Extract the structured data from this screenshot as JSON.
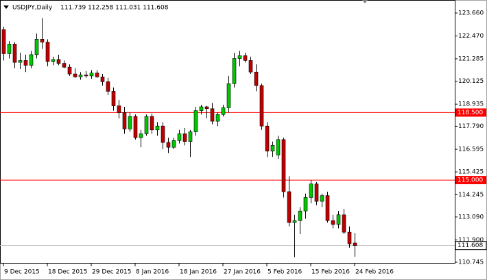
{
  "chart_data": {
    "type": "candlestick",
    "title": "USDJPY,Daily",
    "ohlc_text": "111.739 112.258 111.031 111.608",
    "categories": [
      "9 Dec 2015",
      null,
      null,
      null,
      null,
      null,
      null,
      null,
      "18 Dec 2015",
      null,
      null,
      null,
      null,
      null,
      null,
      null,
      "29 Dec 2015",
      null,
      null,
      null,
      null,
      null,
      null,
      null,
      "8 Jan 2016",
      null,
      null,
      null,
      null,
      null,
      null,
      null,
      "18 Jan 2016",
      null,
      null,
      null,
      null,
      null,
      null,
      null,
      "27 Jan 2016",
      null,
      null,
      null,
      null,
      null,
      null,
      null,
      "5 Feb 2016",
      null,
      null,
      null,
      null,
      null,
      null,
      null,
      "15 Feb 2016",
      null,
      null,
      null,
      null,
      null,
      null,
      null,
      "24 Feb 2016"
    ],
    "open": [
      122.8,
      121.55,
      122.05,
      121.1,
      121.2,
      120.95,
      121.5,
      122.3,
      122.15,
      121.15,
      121.25,
      121.05,
      120.85,
      120.5,
      120.35,
      120.45,
      120.4,
      120.55,
      120.35,
      120.1,
      119.6,
      118.85,
      118.5,
      117.65,
      118.3,
      117.2,
      117.4,
      118.3,
      117.6,
      117.8,
      116.95,
      116.7,
      117.05,
      117.4,
      117.0,
      117.5,
      118.6,
      118.8,
      118.7,
      118.05,
      118.4,
      118.75,
      120.0,
      121.3,
      121.45,
      121.2,
      120.6,
      119.9,
      117.8,
      116.5,
      116.3,
      117.1,
      114.4,
      112.8,
      112.9,
      113.4,
      114.1,
      114.8,
      113.9,
      114.2,
      112.9,
      112.7,
      113.2,
      112.3,
      111.739
    ],
    "high": [
      122.95,
      122.2,
      122.15,
      121.6,
      121.5,
      121.7,
      122.6,
      123.4,
      122.3,
      121.4,
      121.5,
      121.2,
      121.0,
      120.8,
      120.6,
      120.65,
      120.7,
      120.7,
      120.5,
      120.3,
      119.8,
      119.15,
      118.8,
      118.5,
      118.4,
      117.6,
      118.4,
      118.45,
      118.0,
      118.0,
      117.2,
      117.2,
      117.6,
      117.7,
      117.6,
      118.8,
      118.9,
      118.85,
      119.0,
      118.5,
      118.9,
      120.4,
      121.6,
      121.7,
      121.6,
      121.4,
      121.0,
      120.0,
      118.0,
      117.0,
      117.3,
      117.2,
      115.2,
      113.2,
      113.6,
      114.3,
      115.0,
      114.9,
      114.3,
      114.4,
      113.2,
      113.4,
      113.5,
      112.6,
      112.258
    ],
    "low": [
      121.2,
      121.3,
      120.8,
      120.75,
      120.6,
      120.8,
      121.3,
      121.8,
      120.9,
      120.95,
      120.95,
      120.8,
      120.4,
      120.3,
      120.2,
      120.3,
      120.25,
      120.3,
      119.9,
      119.4,
      118.6,
      118.2,
      117.4,
      117.5,
      117.1,
      116.7,
      117.3,
      117.4,
      117.3,
      116.6,
      116.4,
      116.6,
      116.9,
      116.8,
      116.2,
      117.3,
      118.4,
      118.2,
      117.9,
      117.8,
      118.3,
      118.5,
      119.8,
      120.9,
      121.1,
      120.5,
      119.6,
      117.6,
      116.2,
      116.2,
      116.1,
      114.1,
      112.6,
      111.0,
      112.2,
      113.0,
      113.8,
      113.7,
      113.6,
      112.8,
      112.5,
      112.5,
      112.2,
      111.5,
      111.031
    ],
    "close": [
      121.55,
      122.05,
      121.1,
      121.2,
      120.95,
      121.5,
      122.3,
      122.15,
      121.15,
      121.25,
      121.05,
      120.85,
      120.5,
      120.35,
      120.45,
      120.4,
      120.55,
      120.35,
      120.1,
      119.6,
      118.85,
      118.5,
      117.65,
      118.3,
      117.2,
      117.4,
      118.3,
      117.6,
      117.8,
      116.95,
      116.7,
      117.05,
      117.4,
      117.0,
      117.5,
      118.6,
      118.8,
      118.7,
      118.05,
      118.4,
      118.75,
      120.0,
      121.3,
      121.45,
      121.2,
      120.6,
      119.9,
      117.8,
      116.5,
      116.8,
      117.1,
      114.4,
      112.8,
      112.9,
      113.4,
      114.1,
      114.8,
      113.9,
      114.2,
      112.9,
      112.7,
      113.2,
      112.3,
      111.7,
      111.608
    ],
    "up_color": "#00c800",
    "down_color": "#c00000",
    "ylim": [
      110.674,
      124.334
    ],
    "yticks": [
      {
        "value": 123.66,
        "label": "123.660"
      },
      {
        "value": 122.47,
        "label": "122.470"
      },
      {
        "value": 121.285,
        "label": "121.285"
      },
      {
        "value": 120.125,
        "label": "120.125"
      },
      {
        "value": 118.935,
        "label": "118.935"
      },
      {
        "value": 117.79,
        "label": "117.790"
      },
      {
        "value": 116.595,
        "label": "116.595"
      },
      {
        "value": 115.425,
        "label": "115.425"
      },
      {
        "value": 114.245,
        "label": "114.245"
      },
      {
        "value": 113.09,
        "label": "113.090"
      },
      {
        "value": 111.9,
        "label": "111.900"
      },
      {
        "value": 110.745,
        "label": "110.745"
      }
    ],
    "hlines": [
      {
        "value": 118.5,
        "label": "118.500",
        "color": "#ff0000"
      },
      {
        "value": 115,
        "label": "115.000",
        "color": "#ff0000"
      }
    ],
    "last_price": {
      "value": 111.608,
      "label": "111.608",
      "color": "#c0c0c0"
    }
  }
}
